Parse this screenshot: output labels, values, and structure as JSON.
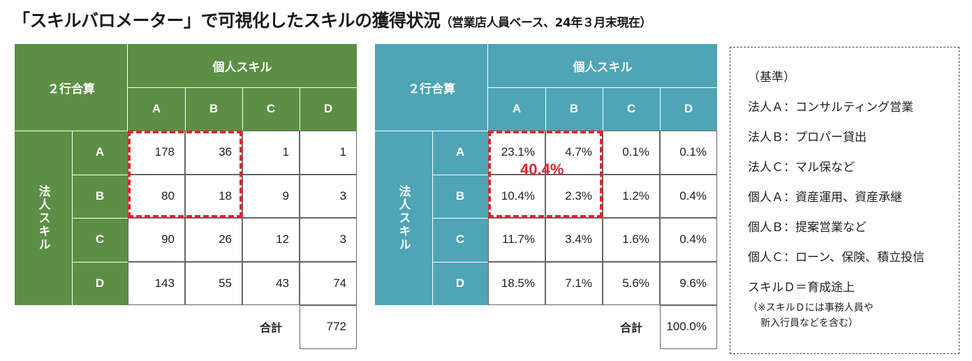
{
  "title": {
    "main": "「スキルバロメーター」で可視化したスキルの獲得状況",
    "sub": "（営業店人員ベース、24年３月末現在）"
  },
  "colors": {
    "green": "#5c8f45",
    "teal": "#4fa4b6",
    "red": "#e0242c"
  },
  "chart_data": [
    {
      "type": "table",
      "corner_label": "２行合算",
      "col_group_label": "個人スキル",
      "row_group_label": "法人スキル",
      "columns": [
        "A",
        "B",
        "C",
        "D"
      ],
      "rows": [
        {
          "label": "A",
          "values": [
            "178",
            "36",
            "1",
            "1"
          ]
        },
        {
          "label": "B",
          "values": [
            "80",
            "18",
            "9",
            "3"
          ]
        },
        {
          "label": "C",
          "values": [
            "90",
            "26",
            "12",
            "3"
          ]
        },
        {
          "label": "D",
          "values": [
            "143",
            "55",
            "43",
            "74"
          ]
        }
      ],
      "total_label": "合計",
      "total_value": "772"
    },
    {
      "type": "table",
      "corner_label": "２行合算",
      "col_group_label": "個人スキル",
      "row_group_label": "法人スキル",
      "columns": [
        "A",
        "B",
        "C",
        "D"
      ],
      "rows": [
        {
          "label": "A",
          "values": [
            "23.1%",
            "4.7%",
            "0.1%",
            "0.1%"
          ]
        },
        {
          "label": "B",
          "values": [
            "10.4%",
            "2.3%",
            "1.2%",
            "0.4%"
          ]
        },
        {
          "label": "C",
          "values": [
            "11.7%",
            "3.4%",
            "1.6%",
            "0.4%"
          ]
        },
        {
          "label": "D",
          "values": [
            "18.5%",
            "7.1%",
            "5.6%",
            "9.6%"
          ]
        }
      ],
      "total_label": "合計",
      "total_value": "100.0%",
      "highlight_value": "40.4%"
    }
  ],
  "legend": {
    "heading": "（基準）",
    "items": [
      "法人Ａ：コンサルティング営業",
      "法人Ｂ：プロパー貸出",
      "法人Ｃ：マル保など",
      "個人Ａ：資産運用、資産承継",
      "個人Ｂ：提案営業など",
      "個人Ｃ：ローン、保険、積立投信",
      "スキルＤ＝育成途上"
    ],
    "note_line1": "（※スキルＤには事務人員や",
    "note_line2": "新入行員などを含む）"
  }
}
